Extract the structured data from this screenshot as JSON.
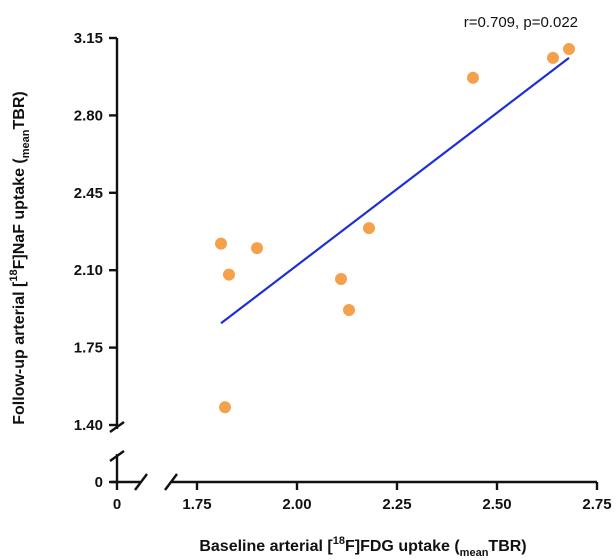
{
  "chart_data": {
    "type": "scatter",
    "title": "",
    "annotation": "r=0.709, p=0.022",
    "xlabel": {
      "prefix": "Baseline arterial [",
      "sup": "18",
      "middle": "F]FDG uptake (",
      "sub": "mean",
      "suffix": "TBR)"
    },
    "ylabel": {
      "prefix": "Follow-up arterial [",
      "sup": "18",
      "middle": "F]NaF uptake (",
      "sub": "mean",
      "suffix": "TBR)"
    },
    "x_ticks": [
      "0",
      "1.75",
      "2.00",
      "2.25",
      "2.50",
      "2.75"
    ],
    "y_ticks": [
      "0",
      "1.40",
      "1.75",
      "2.10",
      "2.45",
      "2.80",
      "3.15"
    ],
    "xlim": [
      1.75,
      2.75
    ],
    "ylim": [
      1.4,
      3.15
    ],
    "axis_breaks": true,
    "grid": false,
    "points": [
      {
        "x": 1.81,
        "y": 2.22
      },
      {
        "x": 1.83,
        "y": 2.08
      },
      {
        "x": 1.9,
        "y": 2.2
      },
      {
        "x": 1.82,
        "y": 1.48
      },
      {
        "x": 2.11,
        "y": 2.06
      },
      {
        "x": 2.13,
        "y": 1.92
      },
      {
        "x": 2.18,
        "y": 2.29
      },
      {
        "x": 2.44,
        "y": 2.97
      },
      {
        "x": 2.64,
        "y": 3.06
      },
      {
        "x": 2.68,
        "y": 3.1
      }
    ],
    "trendline": {
      "x": [
        1.81,
        2.68
      ],
      "y": [
        1.86,
        3.06
      ]
    },
    "point_color": "#F5A04A",
    "line_color": "#1F2FD6"
  }
}
